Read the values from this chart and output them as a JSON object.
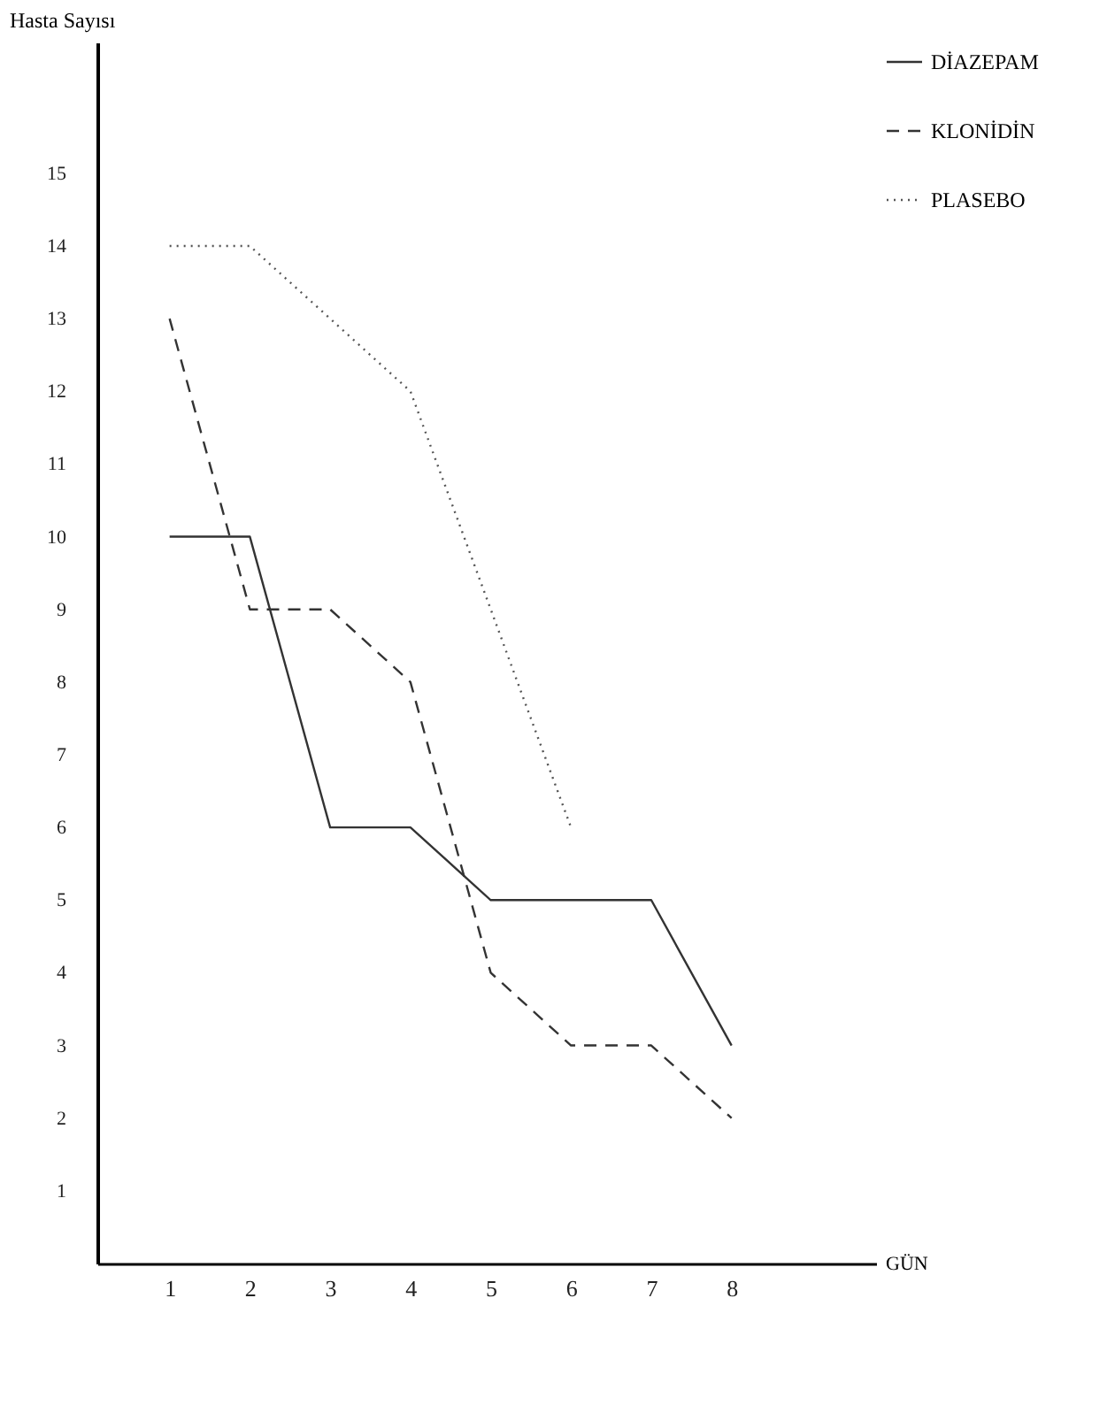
{
  "chart_data": {
    "type": "line",
    "xlabel": "GÜN",
    "ylabel": "Hasta Sayısı",
    "x": [
      1,
      2,
      3,
      4,
      5,
      6,
      7,
      8
    ],
    "series": [
      {
        "name": "DİAZEPAM",
        "color": "#333333",
        "line_style": "solid",
        "values": [
          10,
          10,
          6,
          6,
          5,
          5,
          5,
          3
        ]
      },
      {
        "name": "KLONİDİN",
        "color": "#333333",
        "line_style": "dashed",
        "values": [
          13,
          9,
          9,
          8,
          4,
          3,
          3,
          2
        ]
      },
      {
        "name": "PLASEBO",
        "color": "#555555",
        "line_style": "dotted",
        "values": [
          14,
          14,
          13,
          12,
          9,
          6,
          null,
          null
        ]
      }
    ],
    "xlim": [
      0.1,
      9.8
    ],
    "xticks": [
      1,
      2,
      3,
      4,
      5,
      6,
      7,
      8
    ],
    "ylim": [
      0,
      16.8
    ],
    "yticks": [
      1,
      2,
      3,
      4,
      5,
      6,
      7,
      8,
      9,
      10,
      11,
      12,
      13,
      14,
      15
    ],
    "grid": false,
    "legend": "top right",
    "marker": "none"
  }
}
